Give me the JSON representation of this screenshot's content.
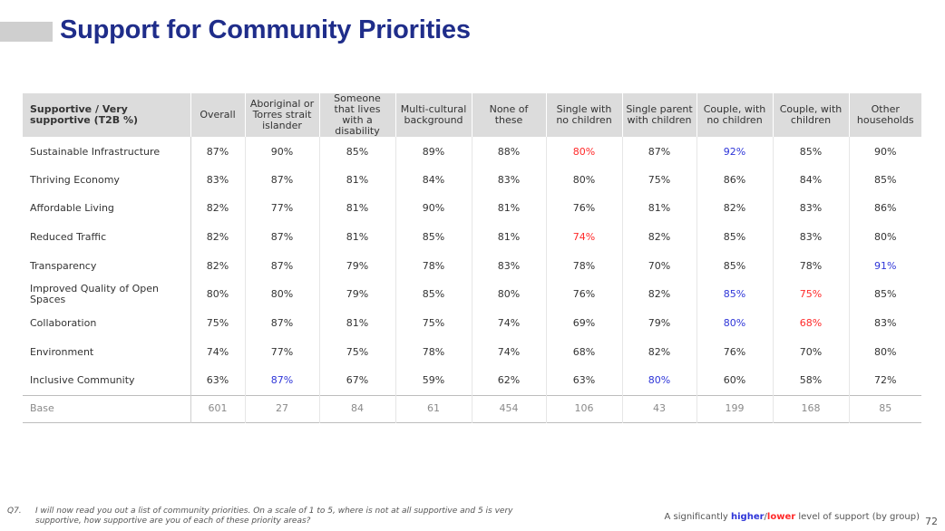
{
  "title": "Support for Community Priorities",
  "colors": {
    "title": "#1f2d8a",
    "higher": "#2e35d8",
    "lower": "#ff2a2a",
    "header_bg": "#dcdcdc"
  },
  "table": {
    "headers": [
      "Supportive / Very supportive (T2B %)",
      "Overall",
      "Aboriginal or Torres strait islander",
      "Someone that lives with a disability",
      "Multi-cultural background",
      "None of these",
      "Single with no children",
      "Single parent with children",
      "Couple, with no children",
      "Couple, with children",
      "Other households"
    ],
    "rows": [
      {
        "label": "Sustainable Infrastructure",
        "values": [
          "87%",
          "90%",
          "85%",
          "89%",
          "88%",
          "80%",
          "87%",
          "92%",
          "85%",
          "90%"
        ],
        "flags": [
          "",
          "",
          "",
          "",
          "",
          "lo",
          "",
          "hi",
          "",
          ""
        ]
      },
      {
        "label": "Thriving Economy",
        "values": [
          "83%",
          "87%",
          "81%",
          "84%",
          "83%",
          "80%",
          "75%",
          "86%",
          "84%",
          "85%"
        ],
        "flags": [
          "",
          "",
          "",
          "",
          "",
          "",
          "",
          "",
          "",
          ""
        ]
      },
      {
        "label": "Affordable Living",
        "values": [
          "82%",
          "77%",
          "81%",
          "90%",
          "81%",
          "76%",
          "81%",
          "82%",
          "83%",
          "86%"
        ],
        "flags": [
          "",
          "",
          "",
          "",
          "",
          "",
          "",
          "",
          "",
          ""
        ]
      },
      {
        "label": "Reduced Traffic",
        "values": [
          "82%",
          "87%",
          "81%",
          "85%",
          "81%",
          "74%",
          "82%",
          "85%",
          "83%",
          "80%"
        ],
        "flags": [
          "",
          "",
          "",
          "",
          "",
          "lo",
          "",
          "",
          "",
          ""
        ]
      },
      {
        "label": "Transparency",
        "values": [
          "82%",
          "87%",
          "79%",
          "78%",
          "83%",
          "78%",
          "70%",
          "85%",
          "78%",
          "91%"
        ],
        "flags": [
          "",
          "",
          "",
          "",
          "",
          "",
          "",
          "",
          "",
          "hi"
        ]
      },
      {
        "label": "Improved Quality of Open Spaces",
        "values": [
          "80%",
          "80%",
          "79%",
          "85%",
          "80%",
          "76%",
          "82%",
          "85%",
          "75%",
          "85%"
        ],
        "flags": [
          "",
          "",
          "",
          "",
          "",
          "",
          "",
          "hi",
          "lo",
          ""
        ]
      },
      {
        "label": "Collaboration",
        "values": [
          "75%",
          "87%",
          "81%",
          "75%",
          "74%",
          "69%",
          "79%",
          "80%",
          "68%",
          "83%"
        ],
        "flags": [
          "",
          "",
          "",
          "",
          "",
          "",
          "",
          "hi",
          "lo",
          ""
        ]
      },
      {
        "label": "Environment",
        "values": [
          "74%",
          "77%",
          "75%",
          "78%",
          "74%",
          "68%",
          "82%",
          "76%",
          "70%",
          "80%"
        ],
        "flags": [
          "",
          "",
          "",
          "",
          "",
          "",
          "",
          "",
          "",
          ""
        ]
      },
      {
        "label": "Inclusive Community",
        "values": [
          "63%",
          "87%",
          "67%",
          "59%",
          "62%",
          "63%",
          "80%",
          "60%",
          "58%",
          "72%"
        ],
        "flags": [
          "",
          "hi",
          "",
          "",
          "",
          "",
          "hi",
          "",
          "",
          ""
        ]
      }
    ],
    "base": {
      "label": "Base",
      "values": [
        "601",
        "27",
        "84",
        "61",
        "454",
        "106",
        "43",
        "199",
        "168",
        "85"
      ]
    }
  },
  "footnote": {
    "q": "Q7.",
    "text": "I will now read you out a list of community priorities. On a scale of 1 to 5, where is not at all supportive and 5 is very supportive, how supportive are you of each of these priority areas?"
  },
  "legend": {
    "prefix": "A significantly ",
    "higher": "higher",
    "sep": "/",
    "lower": "lower",
    "suffix": " level of support (by group)"
  },
  "page_number": "72"
}
